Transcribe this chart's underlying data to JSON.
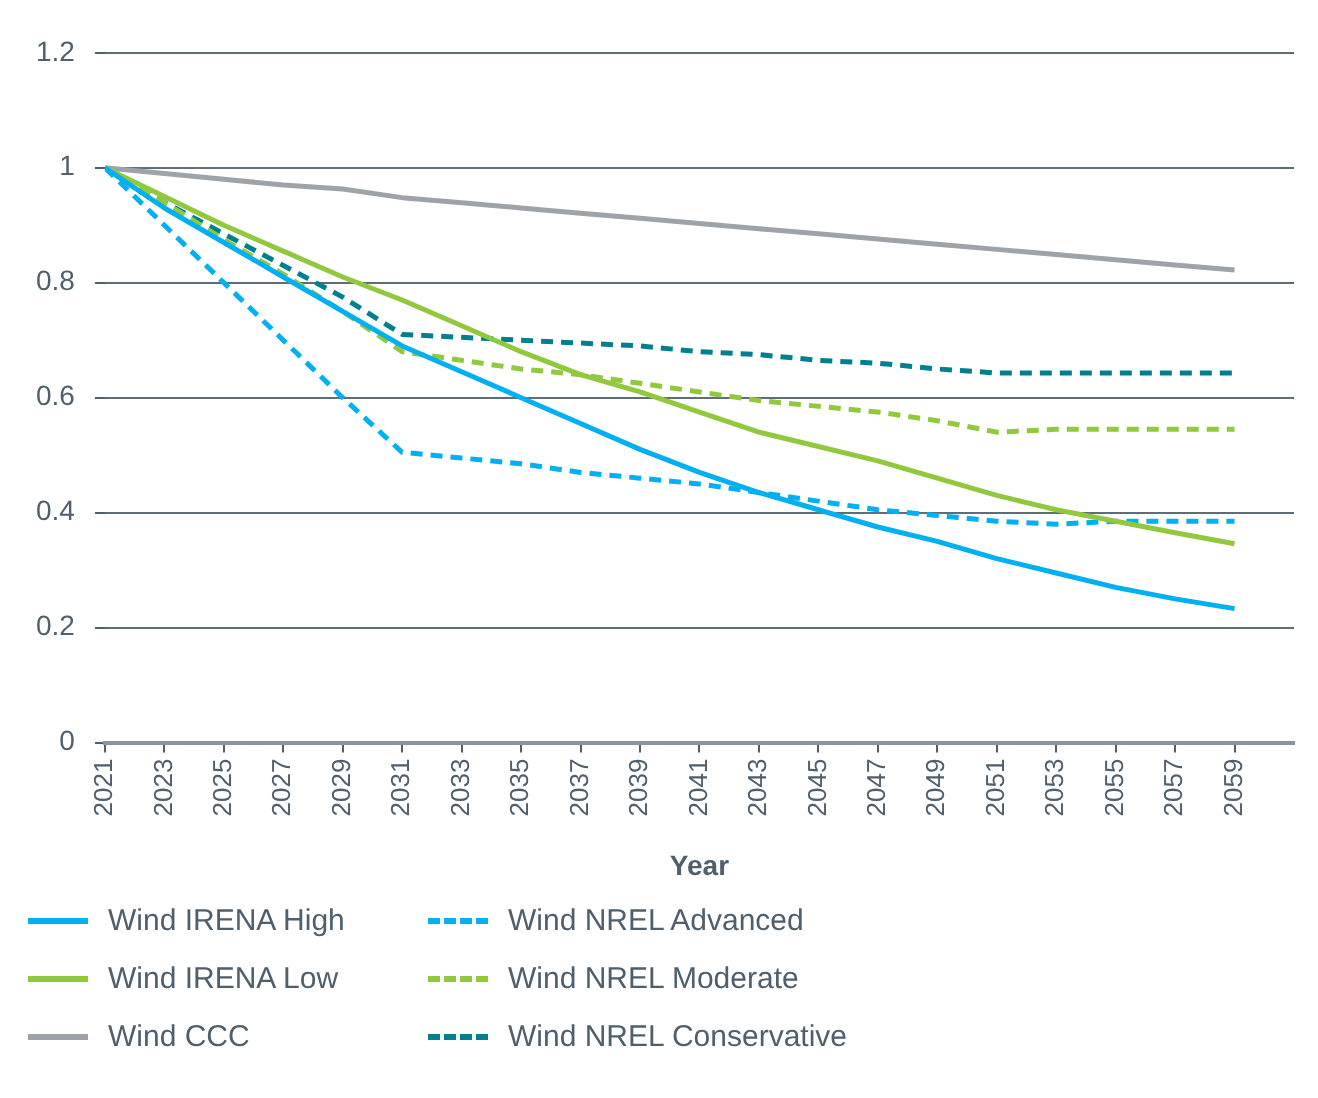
{
  "chart_data": {
    "type": "line",
    "xlabel": "Year",
    "x": [
      2021,
      2023,
      2025,
      2027,
      2029,
      2031,
      2033,
      2035,
      2037,
      2039,
      2041,
      2043,
      2045,
      2047,
      2049,
      2051,
      2053,
      2055,
      2057,
      2059
    ],
    "xlim": [
      2021,
      2061
    ],
    "xticks": [
      2021,
      2023,
      2025,
      2027,
      2029,
      2031,
      2033,
      2035,
      2037,
      2039,
      2041,
      2043,
      2045,
      2047,
      2049,
      2051,
      2053,
      2055,
      2057,
      2059
    ],
    "ylim": [
      0,
      1.2
    ],
    "yticks": [
      0,
      0.2,
      0.4,
      0.6,
      0.8,
      1,
      1.2
    ],
    "grid": "y",
    "legend": "bottom",
    "marker": "none",
    "series": [
      {
        "name": "Wind IRENA High",
        "color": "#00b0f0",
        "line_style": "solid",
        "values": [
          1.0,
          0.93,
          0.87,
          0.81,
          0.75,
          0.69,
          0.645,
          0.6,
          0.555,
          0.51,
          0.47,
          0.435,
          0.405,
          0.375,
          0.35,
          0.32,
          0.295,
          0.27,
          0.25,
          0.233
        ]
      },
      {
        "name": "Wind IRENA Low",
        "color": "#92c83e",
        "line_style": "solid",
        "values": [
          1.0,
          0.95,
          0.9,
          0.855,
          0.81,
          0.77,
          0.725,
          0.68,
          0.64,
          0.61,
          0.575,
          0.54,
          0.515,
          0.49,
          0.46,
          0.43,
          0.405,
          0.385,
          0.365,
          0.346
        ]
      },
      {
        "name": "Wind CCC",
        "color": "#9ea3aa",
        "line_style": "solid",
        "values": [
          1.0,
          0.99,
          0.98,
          0.97,
          0.963,
          0.948,
          0.939,
          0.93,
          0.921,
          0.912,
          0.903,
          0.894,
          0.885,
          0.876,
          0.867,
          0.858,
          0.849,
          0.84,
          0.831,
          0.822
        ]
      },
      {
        "name": "Wind NREL Advanced",
        "color": "#00b0f0",
        "line_style": "dashed",
        "values": [
          1.0,
          0.9,
          0.8,
          0.7,
          0.6,
          0.505,
          0.495,
          0.485,
          0.47,
          0.46,
          0.45,
          0.435,
          0.42,
          0.405,
          0.395,
          0.385,
          0.38,
          0.385,
          0.385,
          0.385
        ]
      },
      {
        "name": "Wind NREL Moderate",
        "color": "#92c83e",
        "line_style": "dashed",
        "values": [
          1.0,
          0.94,
          0.875,
          0.815,
          0.75,
          0.68,
          0.665,
          0.65,
          0.64,
          0.625,
          0.61,
          0.595,
          0.585,
          0.575,
          0.56,
          0.54,
          0.545,
          0.545,
          0.545,
          0.545
        ]
      },
      {
        "name": "Wind NREL Conservative",
        "color": "#00808f",
        "line_style": "dashed",
        "values": [
          1.0,
          0.94,
          0.885,
          0.83,
          0.775,
          0.71,
          0.705,
          0.7,
          0.695,
          0.69,
          0.68,
          0.675,
          0.665,
          0.66,
          0.65,
          0.643,
          0.643,
          0.643,
          0.643,
          0.643
        ]
      }
    ]
  }
}
